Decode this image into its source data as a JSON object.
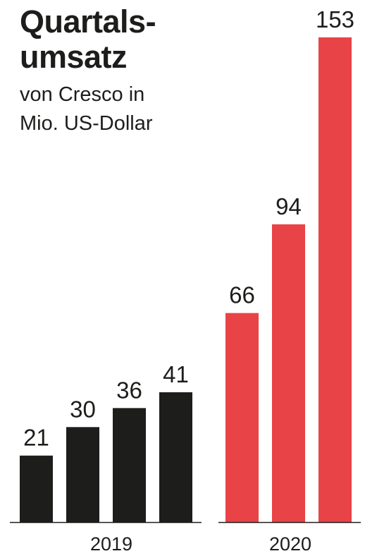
{
  "chart_data": {
    "type": "bar",
    "title": "Quartals-umsatz",
    "title_lines": [
      "Quartals-",
      "umsatz"
    ],
    "subtitle": "von Cresco in Mio. US-Dollar",
    "subtitle_lines": [
      "von Cresco in",
      "Mio. US-Dollar"
    ],
    "ylim": [
      0,
      153
    ],
    "grid": false,
    "groups": [
      {
        "label": "2019",
        "color": "#1d1d1b",
        "values": [
          21,
          30,
          36,
          41
        ]
      },
      {
        "label": "2020",
        "color": "#e84347",
        "values": [
          66,
          94,
          153
        ]
      }
    ]
  }
}
